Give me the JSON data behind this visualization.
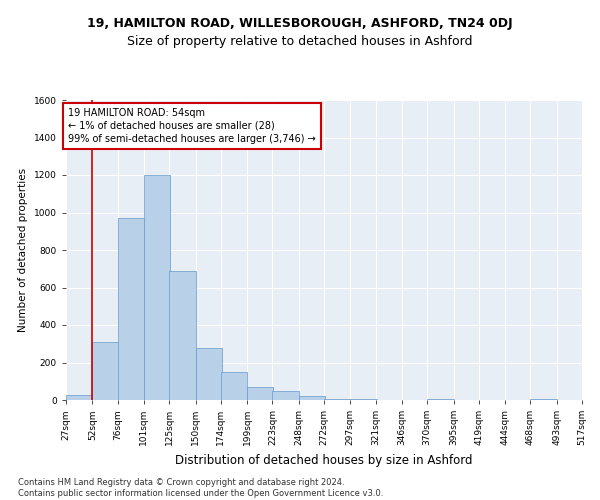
{
  "title1": "19, HAMILTON ROAD, WILLESBOROUGH, ASHFORD, TN24 0DJ",
  "title2": "Size of property relative to detached houses in Ashford",
  "xlabel": "Distribution of detached houses by size in Ashford",
  "ylabel": "Number of detached properties",
  "bar_color": "#b8d0e8",
  "bar_edge_color": "#6699cc",
  "background_color": "#e8eef5",
  "annotation_text": "19 HAMILTON ROAD: 54sqm\n← 1% of detached houses are smaller (28)\n99% of semi-detached houses are larger (3,746) →",
  "annotation_box_color": "#ffffff",
  "annotation_box_edge": "#cc0000",
  "vline_color": "#cc0000",
  "bins": [
    27,
    52,
    76,
    101,
    125,
    150,
    174,
    199,
    223,
    248,
    272,
    297,
    321,
    346,
    370,
    395,
    419,
    444,
    468,
    493,
    517
  ],
  "counts": [
    28,
    310,
    970,
    1200,
    690,
    280,
    150,
    70,
    50,
    20,
    5,
    5,
    0,
    0,
    5,
    0,
    0,
    0,
    5,
    0
  ],
  "tick_labels": [
    "27sqm",
    "52sqm",
    "76sqm",
    "101sqm",
    "125sqm",
    "150sqm",
    "174sqm",
    "199sqm",
    "223sqm",
    "248sqm",
    "272sqm",
    "297sqm",
    "321sqm",
    "346sqm",
    "370sqm",
    "395sqm",
    "419sqm",
    "444sqm",
    "468sqm",
    "493sqm",
    "517sqm"
  ],
  "ylim": [
    0,
    1600
  ],
  "yticks": [
    0,
    200,
    400,
    600,
    800,
    1000,
    1200,
    1400,
    1600
  ],
  "footer_text": "Contains HM Land Registry data © Crown copyright and database right 2024.\nContains public sector information licensed under the Open Government Licence v3.0.",
  "title1_fontsize": 9,
  "title2_fontsize": 9,
  "xlabel_fontsize": 8.5,
  "ylabel_fontsize": 7.5,
  "tick_fontsize": 6.5,
  "footer_fontsize": 6,
  "ann_fontsize": 7
}
